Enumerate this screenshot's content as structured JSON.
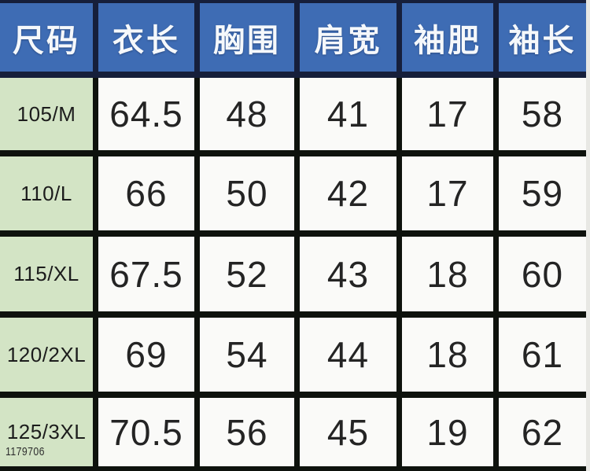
{
  "colors": {
    "header_bg": "#3e6cb4",
    "header_text": "#f5f8fb",
    "header_grid_line": "#161f3b",
    "body_grid_line": "#0e120d",
    "size_column_bg": "#d3e4c5",
    "data_cell_bg": "#fafaf8",
    "data_text": "#242424",
    "page_edge": "#e8e8e4"
  },
  "watermark": "1179706",
  "chart_data": {
    "type": "table",
    "columns": [
      "尺码",
      "衣长",
      "胸围",
      "肩宽",
      "袖肥",
      "袖长"
    ],
    "rows": [
      [
        "105/M",
        "64.5",
        "48",
        "41",
        "17",
        "58"
      ],
      [
        "110/L",
        "66",
        "50",
        "42",
        "17",
        "59"
      ],
      [
        "115/XL",
        "67.5",
        "52",
        "43",
        "18",
        "60"
      ],
      [
        "120/2XL",
        "69",
        "54",
        "44",
        "18",
        "61"
      ],
      [
        "125/3XL",
        "70.5",
        "56",
        "45",
        "19",
        "62"
      ]
    ]
  }
}
